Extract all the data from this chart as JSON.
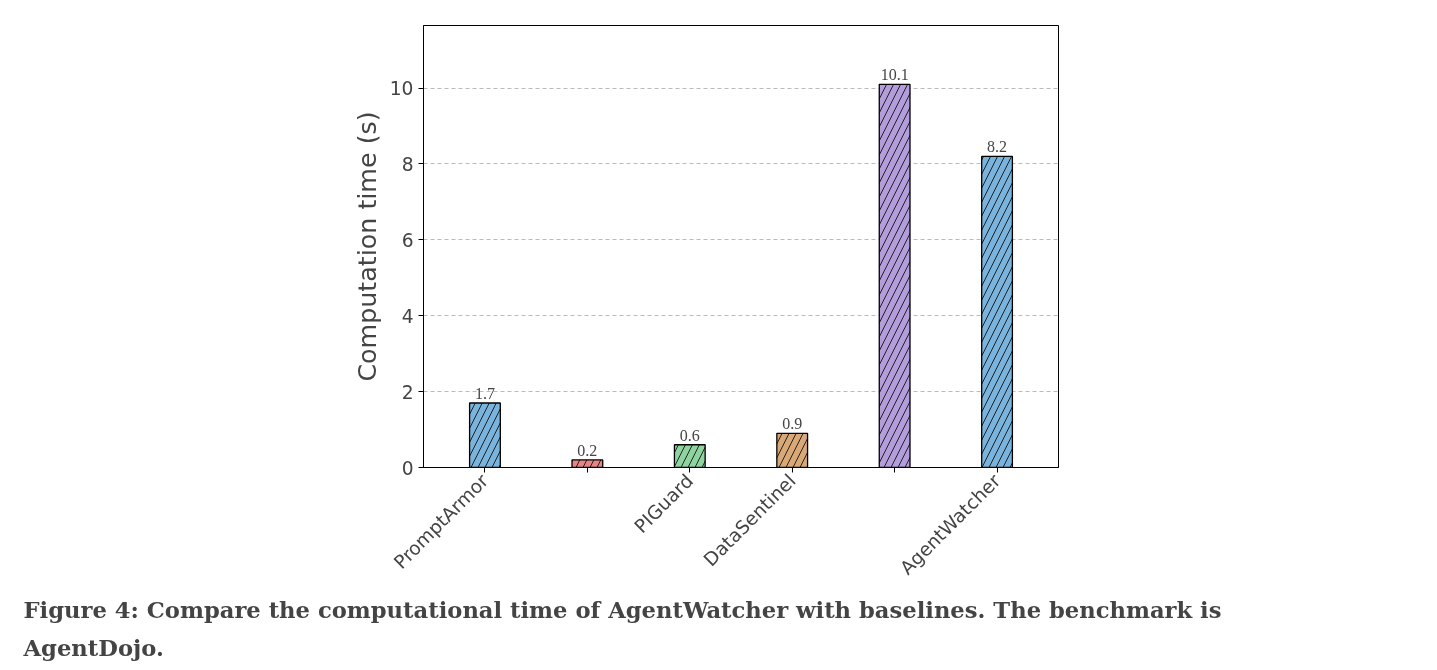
{
  "chart_data": {
    "type": "bar",
    "title": "Figure 4: Compare the computational time of AgentWatcher with baselines. The benchmark is AgentDojo.",
    "ylabel": "Computation time (s)",
    "categories": [
      "PromptArmor",
      null,
      "PIGuard",
      "DataSentinel",
      null,
      "AgentWatcher"
    ],
    "values": [
      1.7,
      0.2,
      0.6,
      0.9,
      10.1,
      8.2
    ],
    "colors": [
      "#7ab3db",
      "#e68585",
      "#8fd3a0",
      "#d9a877",
      "#b39ddb",
      "#7ab3db"
    ],
    "ylim": [
      0,
      11.65
    ],
    "yticks": [
      0,
      2,
      4,
      6,
      8,
      10
    ],
    "grid": "y",
    "data_labels": true
  }
}
